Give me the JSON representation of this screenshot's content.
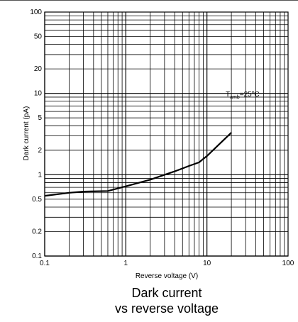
{
  "chart_data": {
    "type": "line",
    "x_scale": "log",
    "y_scale": "log",
    "xlim": [
      0.1,
      100
    ],
    "ylim": [
      0.1,
      100
    ],
    "xlabel": "Reverse voltage (V)",
    "ylabel": "Dark current  (pA)",
    "x_ticks": [
      "0.1",
      "1",
      "10",
      "100"
    ],
    "y_ticks": [
      "0.1",
      "0.2",
      "0.5",
      "1",
      "2",
      "5",
      "10",
      "20",
      "50",
      "100"
    ],
    "annotation": {
      "main": "T",
      "sub": "amb",
      "rest": "=25ºC"
    },
    "grid": true,
    "series": [
      {
        "x": [
          0.1,
          0.2,
          0.3,
          0.6,
          1,
          2,
          4,
          6,
          8,
          10,
          20
        ],
        "y": [
          0.55,
          0.6,
          0.62,
          0.63,
          0.72,
          0.87,
          1.1,
          1.28,
          1.42,
          1.7,
          3.3
        ]
      }
    ],
    "line_color": "#000000"
  },
  "caption": {
    "line1": "Dark current",
    "line2": "vs reverse voltage"
  }
}
